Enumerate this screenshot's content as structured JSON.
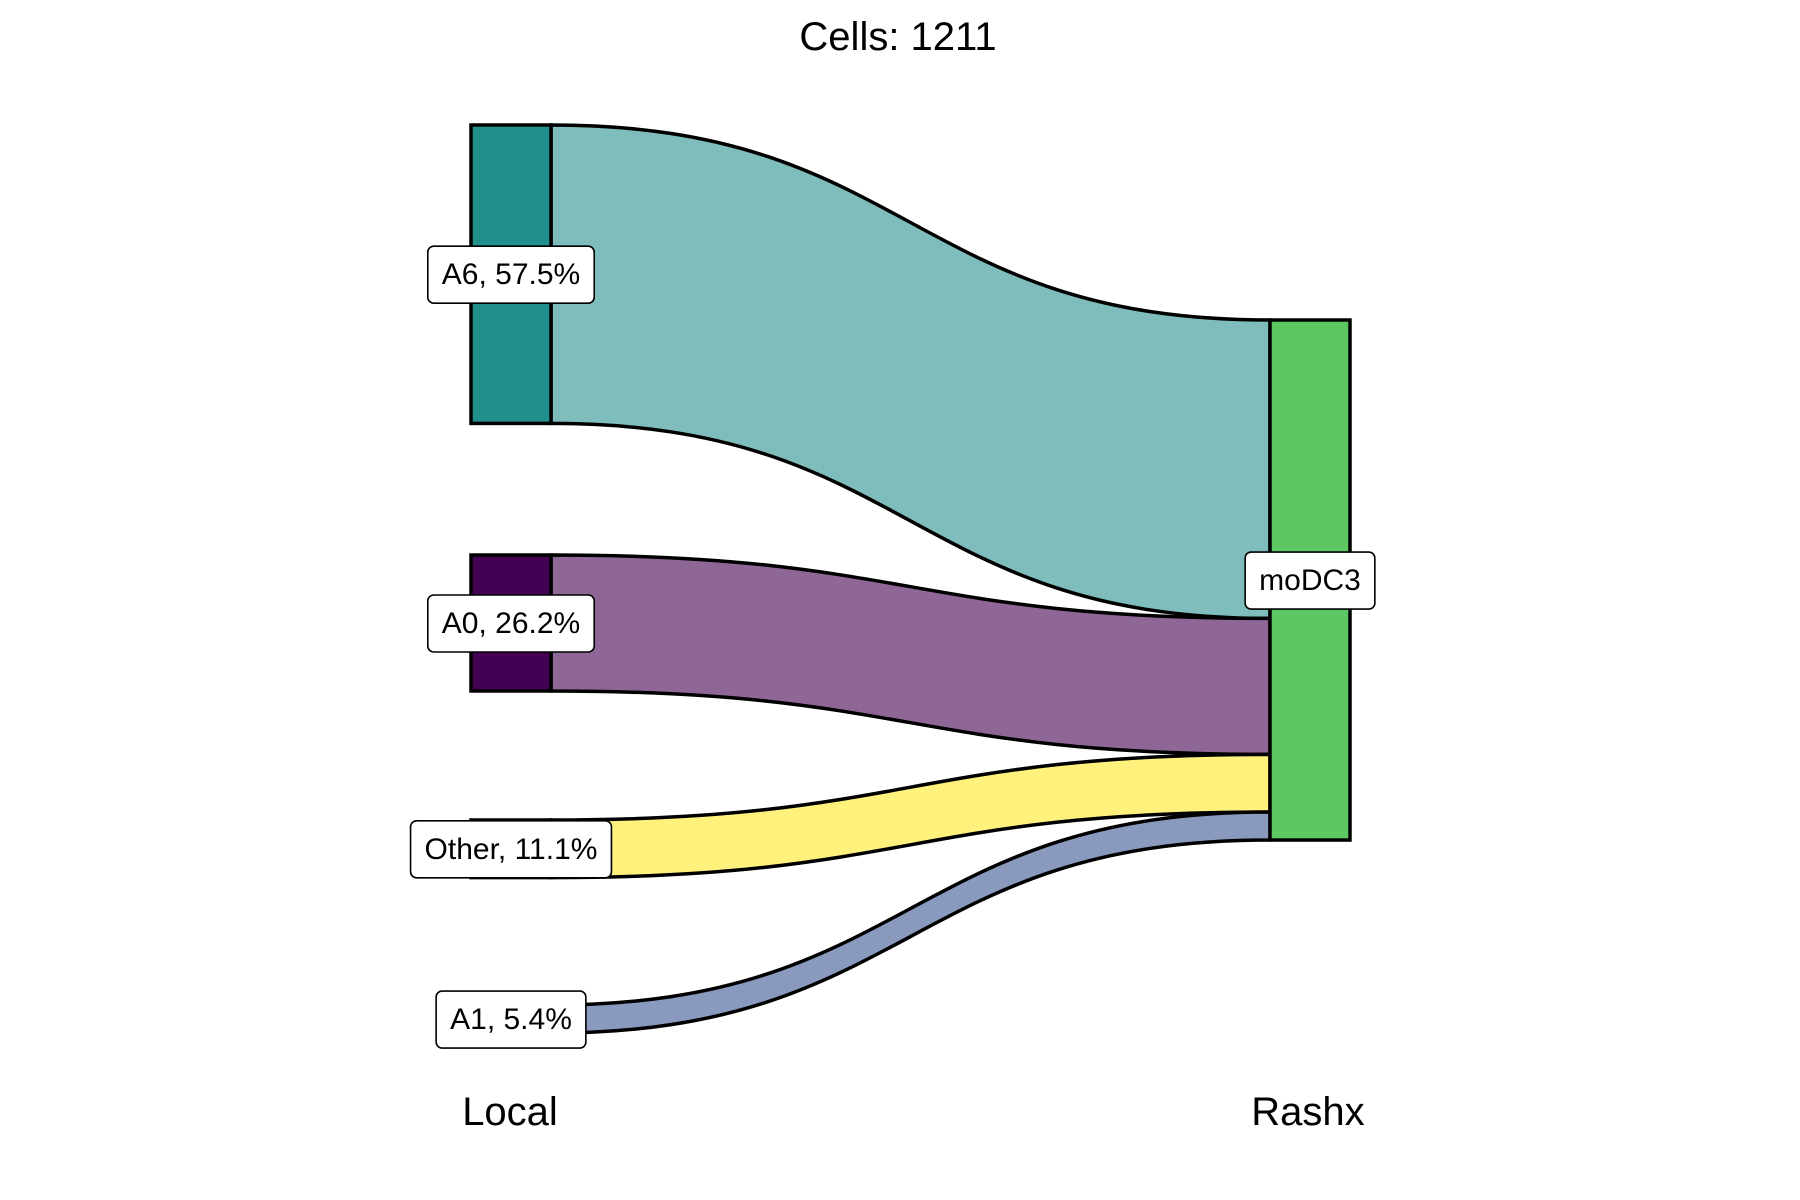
{
  "chart_data": {
    "type": "sankey",
    "title": "Cells:  1211",
    "axes": [
      "Local",
      "Rashx"
    ],
    "source_nodes": [
      {
        "name": "A6",
        "label": "A6, 57.5%",
        "percent": 57.5,
        "color": "#21908C",
        "flow_color": "#7EBDBB"
      },
      {
        "name": "A0",
        "label": "A0, 26.2%",
        "percent": 26.2,
        "color": "#440154",
        "flow_color": "#8F6797"
      },
      {
        "name": "Other",
        "label": "Other, 11.1%",
        "percent": 11.1,
        "color": "#FDE725",
        "flow_color": "#FEF17C"
      },
      {
        "name": "A1",
        "label": "A1, 5.4%",
        "percent": 5.4,
        "color": "#8A9ABF",
        "flow_color": "#8A9ABF"
      }
    ],
    "target_nodes": [
      {
        "name": "moDC3",
        "label": "moDC3",
        "percent": 100,
        "color": "#5DC863"
      }
    ],
    "flows": [
      {
        "source": "A6",
        "target": "moDC3",
        "percent": 57.5
      },
      {
        "source": "A0",
        "target": "moDC3",
        "percent": 26.2
      },
      {
        "source": "Other",
        "target": "moDC3",
        "percent": 11.1
      },
      {
        "source": "A1",
        "target": "moDC3",
        "percent": 5.4
      }
    ]
  }
}
